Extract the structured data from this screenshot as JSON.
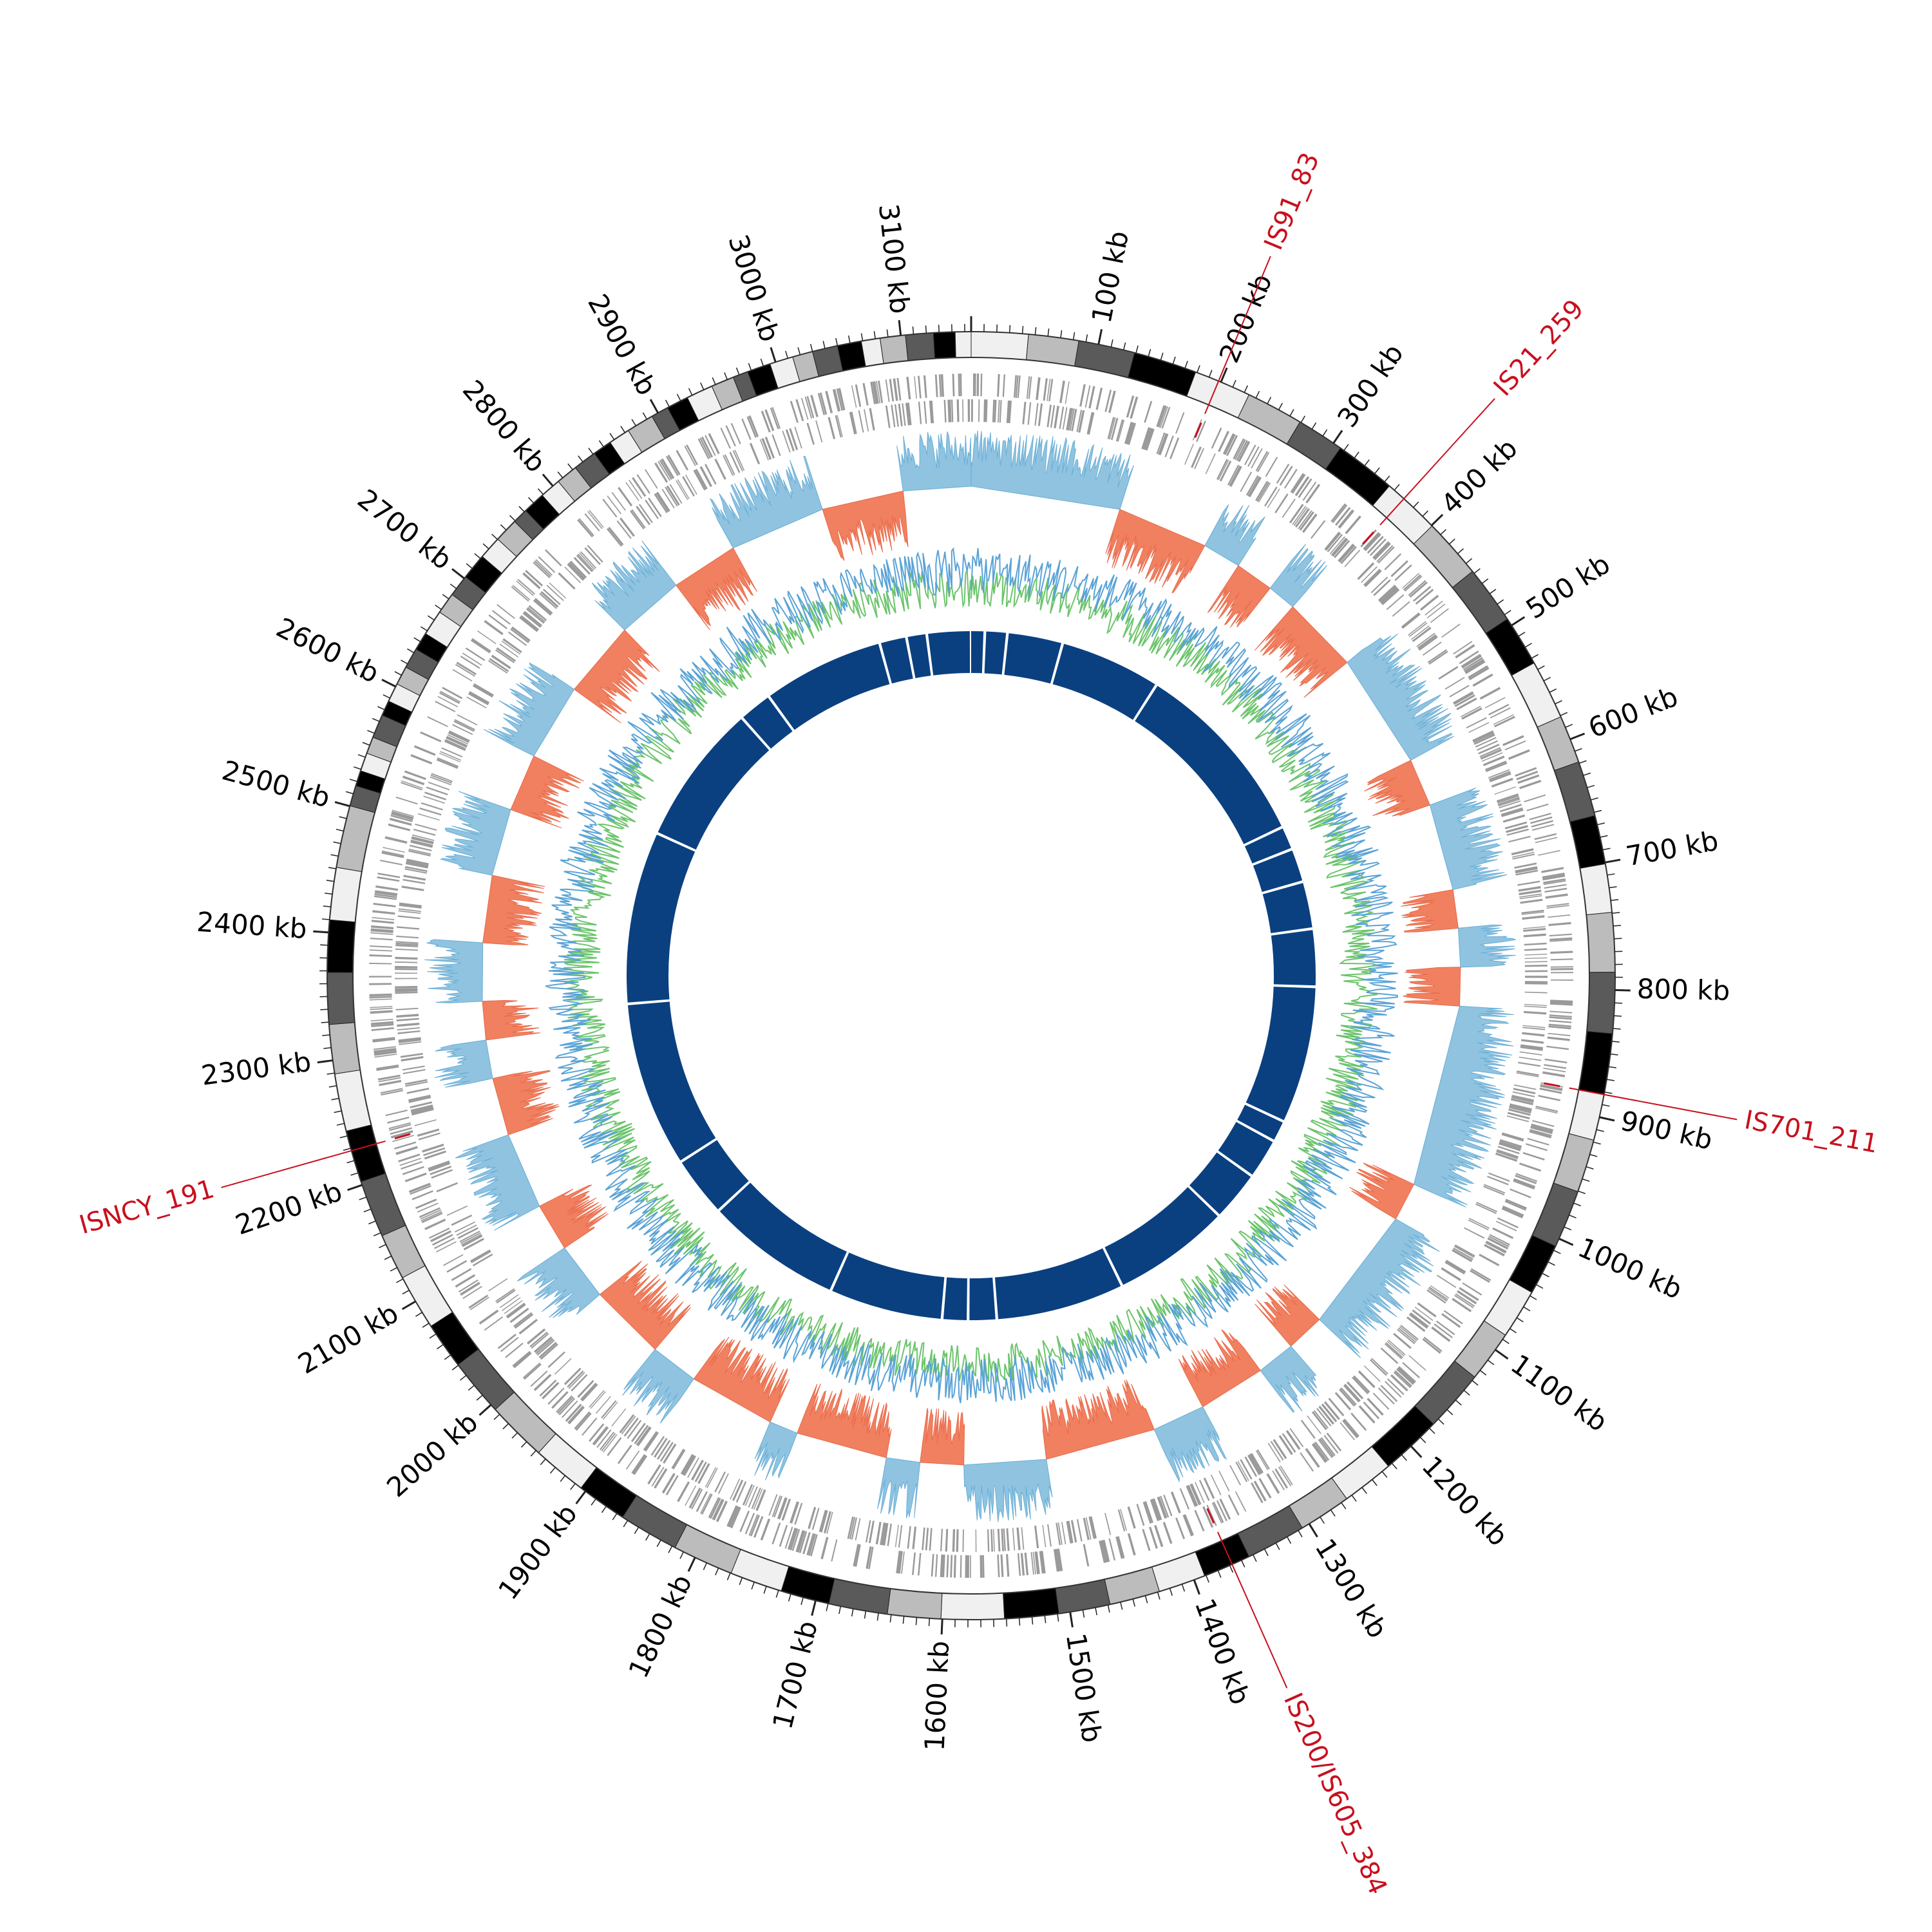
{
  "genome": {
    "length_kb": 3155,
    "tick_interval_kb": 100,
    "tick_unit": "kb",
    "tick_labels_kb": [
      100,
      200,
      300,
      400,
      500,
      600,
      700,
      800,
      900,
      1000,
      1100,
      1200,
      1300,
      1400,
      1500,
      1600,
      1700,
      1800,
      1900,
      2000,
      2100,
      2200,
      2300,
      2400,
      2500,
      2600,
      2700,
      2800,
      2900,
      3000,
      3100
    ]
  },
  "insertion_sequences": [
    {
      "label": "IS91_83",
      "position_kb": 198
    },
    {
      "label": "IS21_259",
      "position_kb": 370
    },
    {
      "label": "IS701_211",
      "position_kb": 882
    },
    {
      "label": "IS200/IS605_384",
      "position_kb": 1368
    },
    {
      "label": "ISNCY_191",
      "position_kb": 2228
    }
  ],
  "colors": {
    "is_label": "#c8101e",
    "cds_track": "#9a9a9a",
    "skew_positive": "#8fc3e0",
    "skew_negative": "#f08060",
    "gc_content_a": "#5aa3d6",
    "gc_content_b": "#6cc46c",
    "inner_blocks": "#0a4080",
    "karyotype_shades": [
      "#f0f0f0",
      "#bcbcbc",
      "#5a5a5a",
      "#000000"
    ]
  },
  "inner_block_gaps_kb": [
    20,
    53,
    135,
    285,
    565,
    600,
    650,
    720,
    805,
    1008,
    1040,
    1100,
    1175,
    1350,
    1540,
    1582,
    1620,
    1788,
    1990,
    2080,
    2325,
    2580,
    2790,
    2840,
    3020,
    3060,
    3090
  ]
}
